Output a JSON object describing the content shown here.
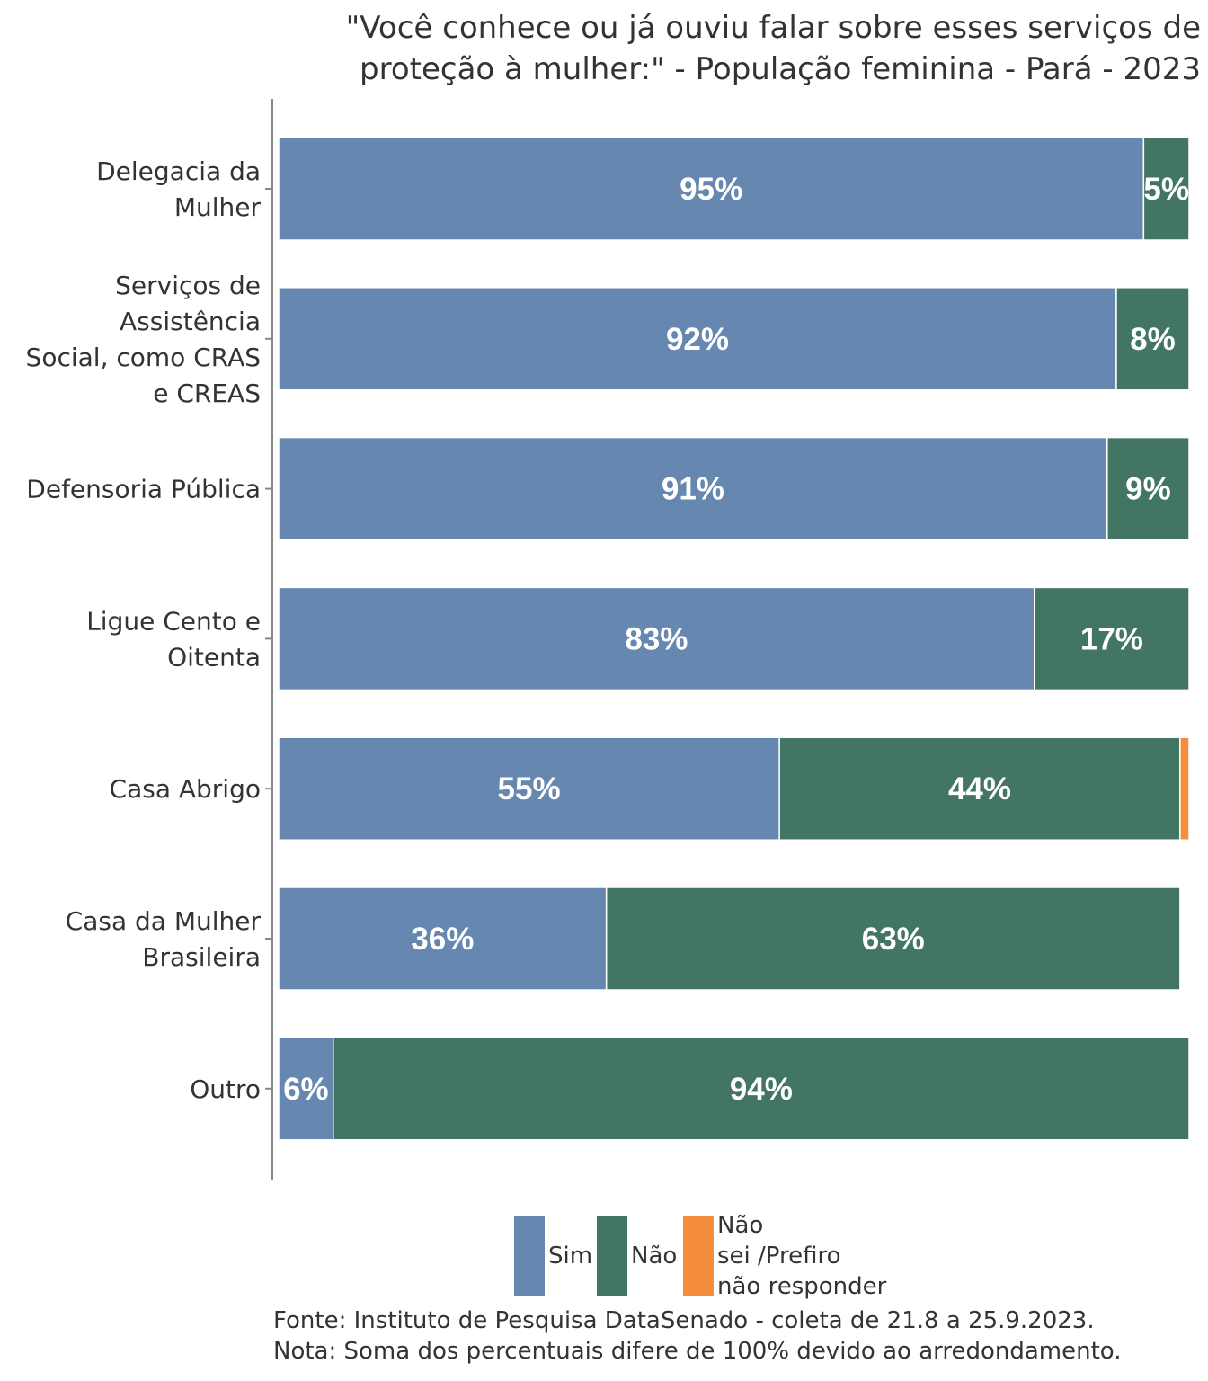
{
  "chart_data": {
    "type": "bar",
    "orientation": "horizontal",
    "stacked": true,
    "title": "\"Você conhece ou já ouviu falar sobre esses serviços de proteção à mulher:\" - População feminina - Pará - 2023",
    "title_lines": [
      "\"Você conhece ou já ouviu falar sobre esses serviços de",
      "proteção à mulher:\" - População feminina - Pará - 2023"
    ],
    "categories": [
      "Delegacia da Mulher",
      "Serviços de Assistência Social, como CRAS e CREAS",
      "Defensoria Pública",
      "Ligue Cento e Oitenta",
      "Casa Abrigo",
      "Casa da Mulher Brasileira",
      "Outro"
    ],
    "category_label_lines": [
      [
        "Delegacia da",
        "Mulher"
      ],
      [
        "Serviços de",
        "Assistência",
        "Social, como CRAS",
        "e CREAS"
      ],
      [
        "Defensoria Pública"
      ],
      [
        "Ligue Cento e",
        "Oitenta"
      ],
      [
        "Casa Abrigo"
      ],
      [
        "Casa da Mulher",
        "Brasileira"
      ],
      [
        "Outro"
      ]
    ],
    "series": [
      {
        "name": "Sim",
        "color": "#6688b0",
        "values": [
          95,
          92,
          91,
          83,
          55,
          36,
          6
        ]
      },
      {
        "name": "Não",
        "color": "#437564",
        "values": [
          5,
          8,
          9,
          17,
          44,
          63,
          94
        ]
      },
      {
        "name": "Não sei /Prefiro não responder",
        "color": "#f58d3b",
        "values": [
          0,
          0,
          0,
          0,
          1,
          0,
          0
        ]
      }
    ],
    "value_unit": "%",
    "xlim": [
      0,
      100
    ],
    "grid": false,
    "legend_position": "bottom",
    "legend_label_lines": [
      [
        "Sim"
      ],
      [
        "Não"
      ],
      [
        "Não",
        "sei /Prefiro",
        "não responder"
      ]
    ]
  },
  "footer": {
    "source": "Fonte: Instituto de Pesquisa DataSenado - coleta de 21.8 a 25.9.2023.",
    "note": "Nota: Soma dos percentuais difere de 100% devido ao arredondamento."
  }
}
